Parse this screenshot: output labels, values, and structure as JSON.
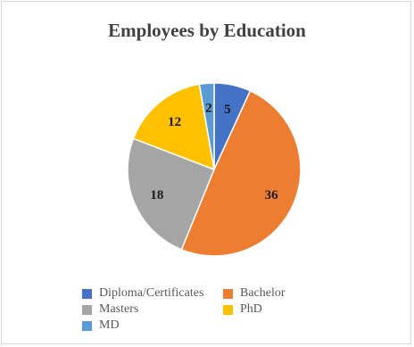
{
  "chart_data": {
    "type": "pie",
    "title": "Employees by Education",
    "categories": [
      "Diploma/Certificates",
      "Bachelor",
      "Masters",
      "PhD",
      "MD"
    ],
    "values": [
      5,
      36,
      18,
      12,
      2
    ],
    "colors": [
      "#4472C4",
      "#ED7D31",
      "#A5A5A5",
      "#FFC000",
      "#5B9BD5"
    ],
    "legend_position": "bottom"
  }
}
